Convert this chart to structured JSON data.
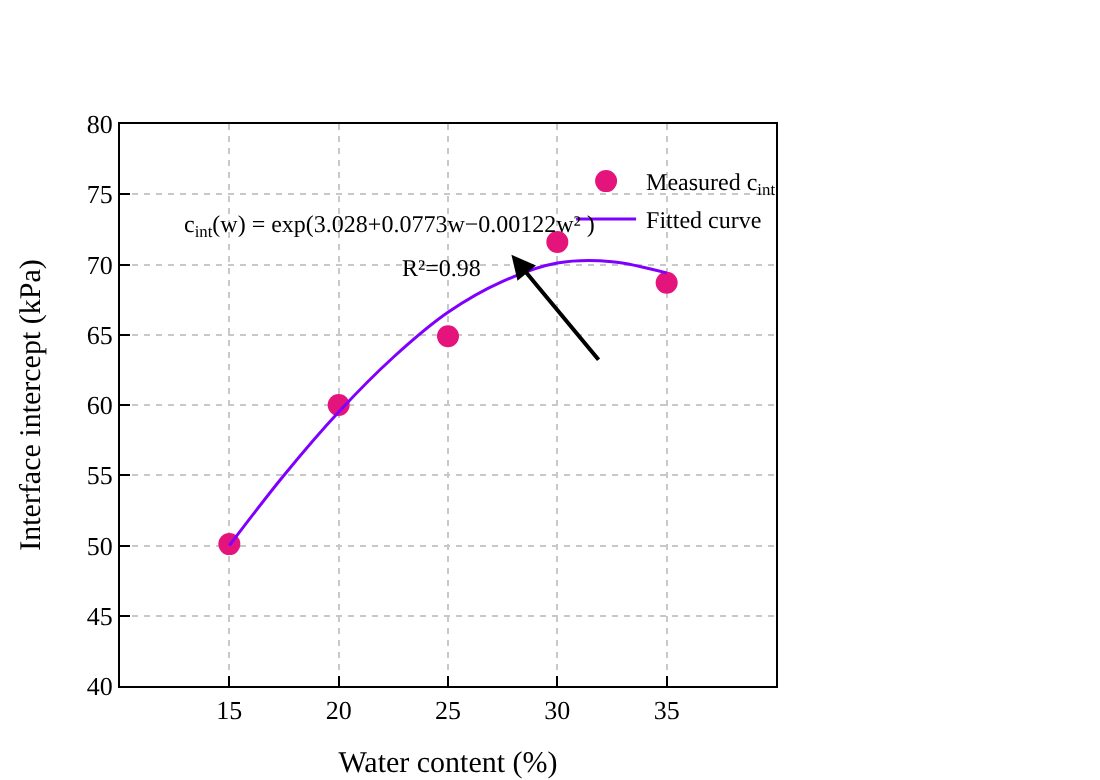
{
  "chart_data": {
    "type": "scatter",
    "xlabel": "Water content (%)",
    "ylabel": "Interface intercept (kPa)",
    "xlim": [
      10,
      40
    ],
    "xticks": [
      15,
      20,
      25,
      30,
      35
    ],
    "ylim": [
      40,
      80
    ],
    "yticks": [
      40,
      45,
      50,
      55,
      60,
      65,
      70,
      75,
      80
    ],
    "grid": true,
    "legend": "top right",
    "series": [
      {
        "name": "Measured c$_{int}$",
        "type": "scatter",
        "marker": "circle",
        "color": "#e4147c",
        "x": [
          15,
          20,
          25,
          30,
          35
        ],
        "values": [
          50.1,
          60,
          64.9,
          71.6,
          68.7
        ]
      },
      {
        "name": "Fitted curve",
        "type": "line",
        "marker": "none",
        "color": "#8000ff",
        "x": [
          15,
          17.5,
          20,
          22.5,
          25,
          27.5,
          30,
          32.5,
          35
        ],
        "values": [
          50.0,
          55.0,
          59.5,
          63.4,
          66.6,
          68.8,
          70.1,
          70.2,
          69.4
        ]
      }
    ],
    "annotations": [
      "c$_{int}$(w) = exp(3.028+0.0773w−0.00122w² )",
      "R²=0.98"
    ]
  }
}
